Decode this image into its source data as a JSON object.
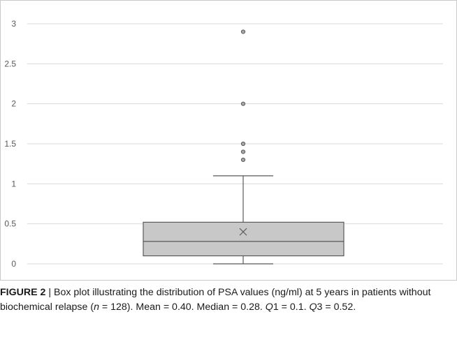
{
  "chart_data": {
    "type": "box",
    "ylim": [
      0,
      3
    ],
    "y_ticks": [
      "0",
      "0.5",
      "1",
      "1.5",
      "2",
      "2.5",
      "3"
    ],
    "grid": true,
    "legend": "none",
    "box": {
      "whisker_low": 0,
      "q1": 0.1,
      "median": 0.28,
      "q3": 0.52,
      "whisker_high": 1.1,
      "mean": 0.4,
      "outliers": [
        1.3,
        1.4,
        1.5,
        2.0,
        2.9
      ]
    },
    "colors": {
      "box_fill": "#c8c8c8",
      "box_stroke": "#595959",
      "grid": "#d9d9d9",
      "outlier_fill": "#a6a6a6"
    }
  },
  "caption": {
    "label": "FIGURE 2",
    "sep": " | ",
    "t1": "Box plot illustrating the distribution of PSA values (ng/ml) at 5 years in patients without biochemical relapse (",
    "n_sym": "n",
    "t2": " = 128). Mean = 0.40. Median = 0.28. ",
    "q1_sym": "Q",
    "t3": "1 = 0.1. ",
    "q3_sym": "Q",
    "t4": "3 = 0.52."
  }
}
